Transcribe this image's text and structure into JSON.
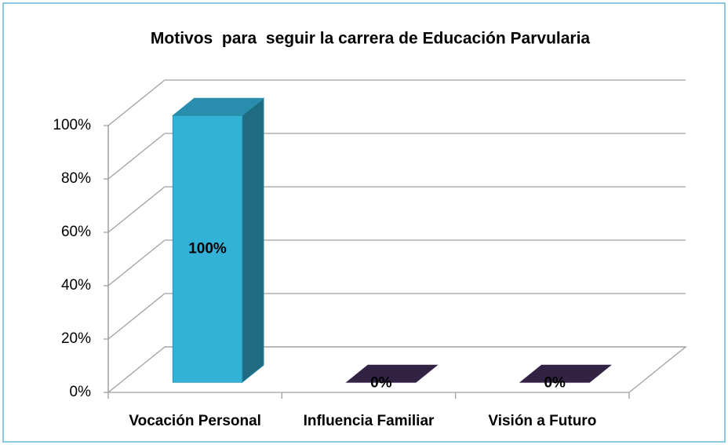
{
  "chart_data": {
    "type": "bar3d",
    "title": "Motivos  para  seguir la carrera de Educación Parvularia",
    "categories": [
      "Vocación Personal",
      "Influencia Familiar",
      "Visión a  Futuro"
    ],
    "values": [
      100,
      0,
      0
    ],
    "value_labels": [
      "100%",
      "0%",
      "0%"
    ],
    "colors": [
      "#33b2d8",
      "#3e2a55",
      "#3e2a55"
    ],
    "ylim": [
      0,
      100
    ],
    "yticks": [
      {
        "value": 0,
        "label": "0%"
      },
      {
        "value": 20,
        "label": "20%"
      },
      {
        "value": 40,
        "label": "40%"
      },
      {
        "value": 60,
        "label": "60%"
      },
      {
        "value": 80,
        "label": "80%"
      },
      {
        "value": 100,
        "label": "100%"
      }
    ],
    "grid": true
  }
}
